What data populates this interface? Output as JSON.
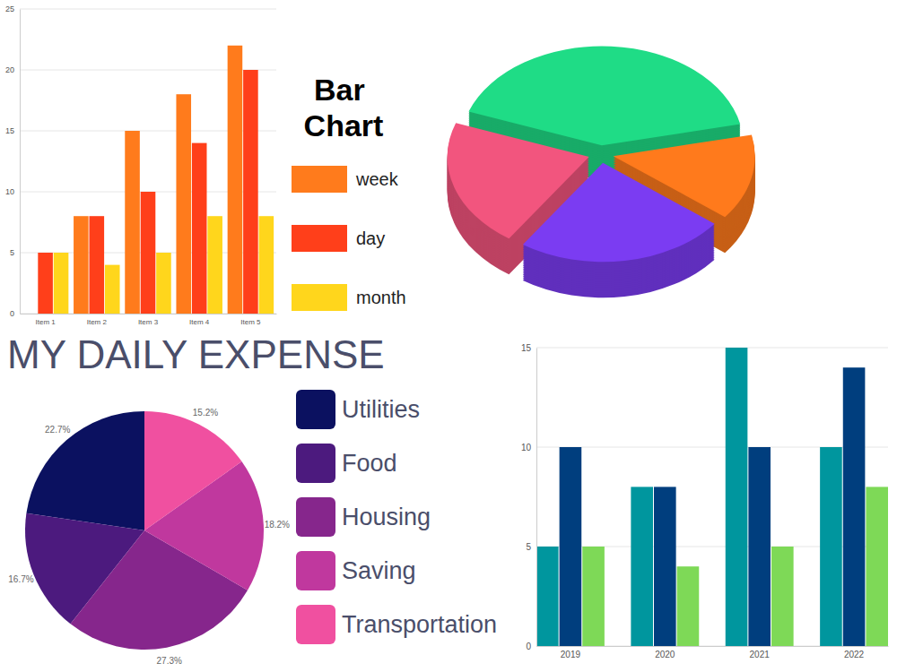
{
  "chart_data": [
    {
      "type": "bar",
      "title": "Bar Chart",
      "categories": [
        "Item 1",
        "Item 2",
        "Item 3",
        "Item 4",
        "Item 5"
      ],
      "series": [
        {
          "name": "week",
          "color": "#ff7b1c",
          "values": [
            null,
            8,
            15,
            18,
            22
          ]
        },
        {
          "name": "day",
          "color": "#ff3f1a",
          "values": [
            5,
            8,
            10,
            14,
            20
          ]
        },
        {
          "name": "month",
          "color": "#ffd61c",
          "values": [
            5,
            4,
            5,
            8,
            8
          ]
        }
      ],
      "ylim": [
        0,
        25
      ],
      "yticks": [
        0,
        5,
        10,
        15,
        20,
        25
      ],
      "grid": true,
      "legend": "right"
    },
    {
      "type": "pie",
      "values": [
        41,
        14,
        24,
        21
      ],
      "colors": [
        "#1fdc86",
        "#ff7a1c",
        "#7b3cf2",
        "#f2557e"
      ]
    },
    {
      "type": "pie",
      "title": "MY DAILY EXPENSE",
      "categories": [
        "Utilities",
        "Food",
        "Housing",
        "Saving",
        "Transportation"
      ],
      "values": [
        22.7,
        16.7,
        27.3,
        18.2,
        15.2
      ],
      "value_labels": [
        "22.7%",
        "16.7%",
        "27.3%",
        "18.2%",
        "15.2%"
      ],
      "colors": [
        "#0b1160",
        "#4c1a7e",
        "#86268c",
        "#c0389e",
        "#f050a0"
      ],
      "data_labels": true,
      "legend": "right"
    },
    {
      "type": "bar",
      "categories": [
        "2019",
        "2020",
        "2021",
        "2022"
      ],
      "series": [
        {
          "color": "#00969e",
          "values": [
            5,
            8,
            15,
            10
          ]
        },
        {
          "color": "#003e7e",
          "values": [
            10,
            8,
            10,
            14
          ]
        },
        {
          "color": "#7ed957",
          "values": [
            5,
            4,
            5,
            8
          ]
        }
      ],
      "ylim": [
        0,
        15
      ],
      "yticks": [
        0,
        5,
        10,
        15
      ],
      "grid": true
    }
  ]
}
